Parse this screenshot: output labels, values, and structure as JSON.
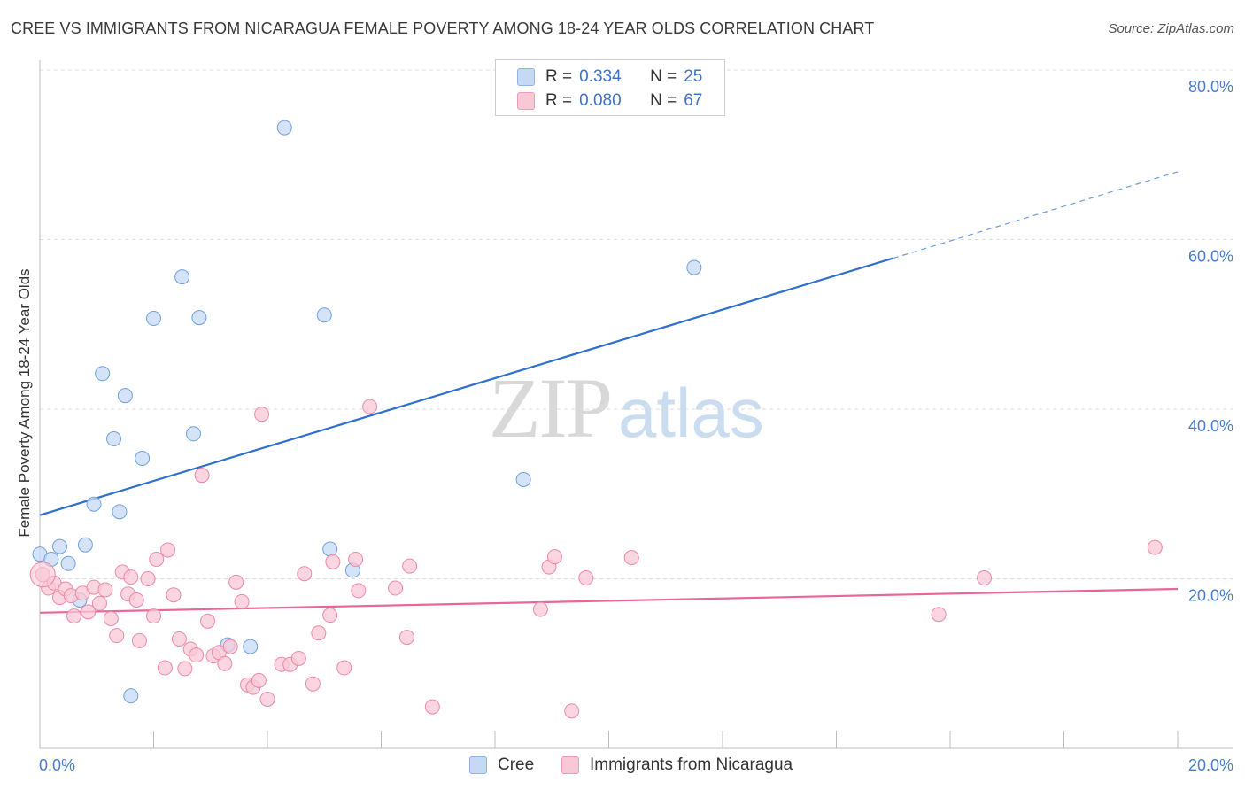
{
  "title": "CREE VS IMMIGRANTS FROM NICARAGUA FEMALE POVERTY AMONG 18-24 YEAR OLDS CORRELATION CHART",
  "source": "Source: ZipAtlas.com",
  "watermark": {
    "zip": "ZIP",
    "atlas": "atlas"
  },
  "legend": {
    "rows": [
      {
        "r_label": "R =",
        "r_value": "0.334",
        "n_label": "N =",
        "n_value": "25",
        "color": "#a9c8f0"
      },
      {
        "r_label": "R =",
        "r_value": "0.080",
        "n_label": "N =",
        "n_value": "67",
        "color": "#f6b8cb"
      }
    ]
  },
  "bottom_legend": {
    "series1": "Cree",
    "series2": "Immigrants from Nicaragua"
  },
  "chart_data": {
    "type": "scatter",
    "title": "CREE VS IMMIGRANTS FROM NICARAGUA FEMALE POVERTY AMONG 18-24 YEAR OLDS CORRELATION CHART",
    "xlabel": "",
    "ylabel": "Female Poverty Among 18-24 Year Olds",
    "xlim": [
      0,
      20
    ],
    "ylim": [
      0,
      80
    ],
    "x_tick_labels": [
      "0.0%",
      "20.0%"
    ],
    "y_ticks": [
      20,
      40,
      60,
      80
    ],
    "y_tick_labels": [
      "20.0%",
      "40.0%",
      "60.0%",
      "80.0%"
    ],
    "grid": "horizontal dashed",
    "legend_position": "top-center",
    "series": [
      {
        "name": "Cree",
        "color": "#6fa0e0",
        "fill": "#c5d9f5",
        "trend": {
          "x0": 0,
          "y0": 27.5,
          "x1": 15,
          "y1": 57.8,
          "dashed_to_x": 20,
          "dashed_to_y": 68
        },
        "points": [
          [
            0.0,
            22.9
          ],
          [
            0.2,
            22.3
          ],
          [
            0.35,
            23.8
          ],
          [
            0.5,
            21.8
          ],
          [
            0.7,
            17.5
          ],
          [
            0.8,
            24.0
          ],
          [
            0.95,
            28.8
          ],
          [
            1.1,
            44.2
          ],
          [
            1.3,
            36.5
          ],
          [
            1.4,
            27.9
          ],
          [
            1.5,
            41.6
          ],
          [
            1.6,
            6.2
          ],
          [
            1.8,
            34.2
          ],
          [
            2.0,
            50.7
          ],
          [
            2.5,
            55.6
          ],
          [
            2.7,
            37.1
          ],
          [
            2.8,
            50.8
          ],
          [
            3.3,
            12.2
          ],
          [
            3.7,
            12.0
          ],
          [
            4.3,
            73.2
          ],
          [
            5.0,
            51.1
          ],
          [
            5.1,
            23.5
          ],
          [
            5.5,
            21.0
          ],
          [
            8.5,
            31.7
          ],
          [
            11.5,
            56.7
          ]
        ]
      },
      {
        "name": "Immigrants from Nicaragua",
        "color": "#ee88a8",
        "fill": "#f9c8d6",
        "trend": {
          "x0": 0,
          "y0": 16.0,
          "x1": 20,
          "y1": 18.8
        },
        "points": [
          [
            0.05,
            20.5
          ],
          [
            0.15,
            18.9
          ],
          [
            0.25,
            19.5
          ],
          [
            0.35,
            17.8
          ],
          [
            0.45,
            18.8
          ],
          [
            0.55,
            18.0
          ],
          [
            0.6,
            15.6
          ],
          [
            0.75,
            18.3
          ],
          [
            0.85,
            16.1
          ],
          [
            0.95,
            19.0
          ],
          [
            1.05,
            17.1
          ],
          [
            1.15,
            18.7
          ],
          [
            1.25,
            15.3
          ],
          [
            1.35,
            13.3
          ],
          [
            1.45,
            20.8
          ],
          [
            1.55,
            18.2
          ],
          [
            1.6,
            20.2
          ],
          [
            1.7,
            17.5
          ],
          [
            1.75,
            12.7
          ],
          [
            1.9,
            20.0
          ],
          [
            2.0,
            15.6
          ],
          [
            2.05,
            22.3
          ],
          [
            2.2,
            9.5
          ],
          [
            2.25,
            23.4
          ],
          [
            2.35,
            18.1
          ],
          [
            2.45,
            12.9
          ],
          [
            2.55,
            9.4
          ],
          [
            2.65,
            11.7
          ],
          [
            2.75,
            11.0
          ],
          [
            2.85,
            32.2
          ],
          [
            2.95,
            15.0
          ],
          [
            3.05,
            10.9
          ],
          [
            3.15,
            11.3
          ],
          [
            3.25,
            10.0
          ],
          [
            3.35,
            12.0
          ],
          [
            3.45,
            19.6
          ],
          [
            3.55,
            17.3
          ],
          [
            3.65,
            7.5
          ],
          [
            3.75,
            7.2
          ],
          [
            3.85,
            8.0
          ],
          [
            3.9,
            39.4
          ],
          [
            4.0,
            5.8
          ],
          [
            4.25,
            9.9
          ],
          [
            4.4,
            9.9
          ],
          [
            4.55,
            10.6
          ],
          [
            4.65,
            20.6
          ],
          [
            4.8,
            7.6
          ],
          [
            4.9,
            13.6
          ],
          [
            5.1,
            15.7
          ],
          [
            5.15,
            22.0
          ],
          [
            5.35,
            9.5
          ],
          [
            5.55,
            22.3
          ],
          [
            5.6,
            18.6
          ],
          [
            5.8,
            40.3
          ],
          [
            6.25,
            18.9
          ],
          [
            6.45,
            13.1
          ],
          [
            6.5,
            21.5
          ],
          [
            6.9,
            4.9
          ],
          [
            8.8,
            16.4
          ],
          [
            8.95,
            21.4
          ],
          [
            9.05,
            22.6
          ],
          [
            9.35,
            4.4
          ],
          [
            9.6,
            20.1
          ],
          [
            10.4,
            22.5
          ],
          [
            15.8,
            15.8
          ],
          [
            16.6,
            20.1
          ],
          [
            19.6,
            23.7
          ]
        ]
      }
    ]
  }
}
